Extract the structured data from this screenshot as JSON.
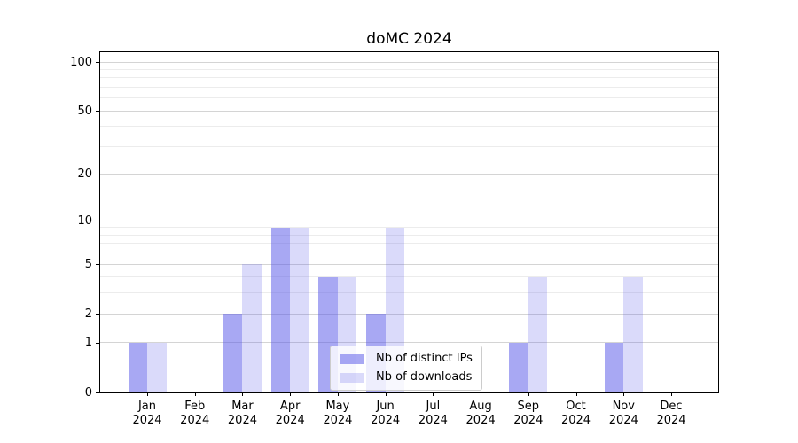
{
  "chart_data": {
    "type": "bar",
    "title": "doMC 2024",
    "categories": [
      "Jan 2024",
      "Feb 2024",
      "Mar 2024",
      "Apr 2024",
      "May 2024",
      "Jun 2024",
      "Jul 2024",
      "Aug 2024",
      "Sep 2024",
      "Oct 2024",
      "Nov 2024",
      "Dec 2024"
    ],
    "series": [
      {
        "key": "distinct-ips",
        "name": "Nb of distinct IPs",
        "color": "rgba(82,82,232,0.5)",
        "values": [
          1,
          0,
          2,
          9,
          4,
          2,
          0,
          0,
          1,
          0,
          1,
          0
        ]
      },
      {
        "key": "downloads",
        "name": "Nb of downloads",
        "color": "rgba(82,82,232,0.21)",
        "values": [
          1,
          0,
          5,
          9,
          4,
          9,
          0,
          0,
          4,
          0,
          4,
          0
        ]
      }
    ],
    "yticks": [
      0,
      1,
      2,
      5,
      10,
      20,
      50,
      100
    ],
    "y_minor_gridlines": [
      3,
      4,
      6,
      7,
      8,
      9,
      30,
      40,
      60,
      70,
      80,
      90
    ],
    "ylim": [
      0,
      100
    ],
    "yscale": "log1p",
    "xlabel": "",
    "ylabel": "",
    "grid": true,
    "legend_position": "bottom-center"
  }
}
